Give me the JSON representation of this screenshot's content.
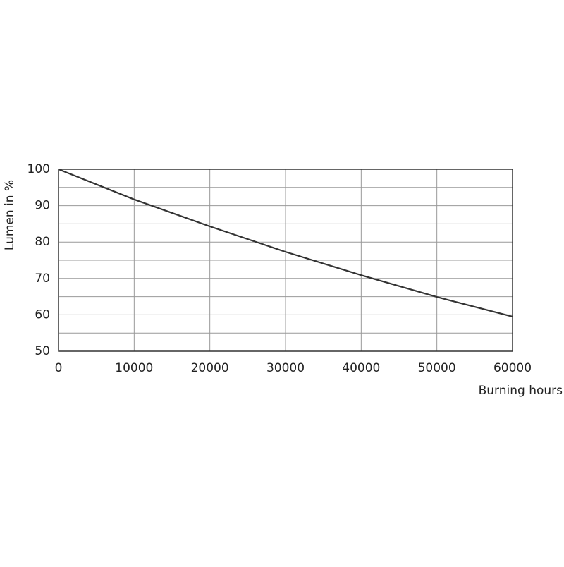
{
  "chart_data": {
    "type": "line",
    "y_label": "Lumen in %",
    "x_label": "Burning hours",
    "x": [
      0,
      10000,
      20000,
      30000,
      40000,
      50000,
      60000
    ],
    "series": [
      {
        "name": "Lumen",
        "color": "#333333",
        "values": [
          100,
          91.7,
          84.3,
          77.3,
          70.9,
          64.9,
          59.5
        ]
      }
    ],
    "xlim": [
      0,
      60000
    ],
    "xticks": [
      0,
      10000,
      20000,
      30000,
      40000,
      50000,
      60000
    ],
    "ylim": [
      50,
      100
    ],
    "yticks": [
      50,
      60,
      70,
      80,
      90,
      100
    ],
    "y_minor_ticks": [
      55,
      65,
      75,
      85,
      95
    ],
    "grid": true
  }
}
